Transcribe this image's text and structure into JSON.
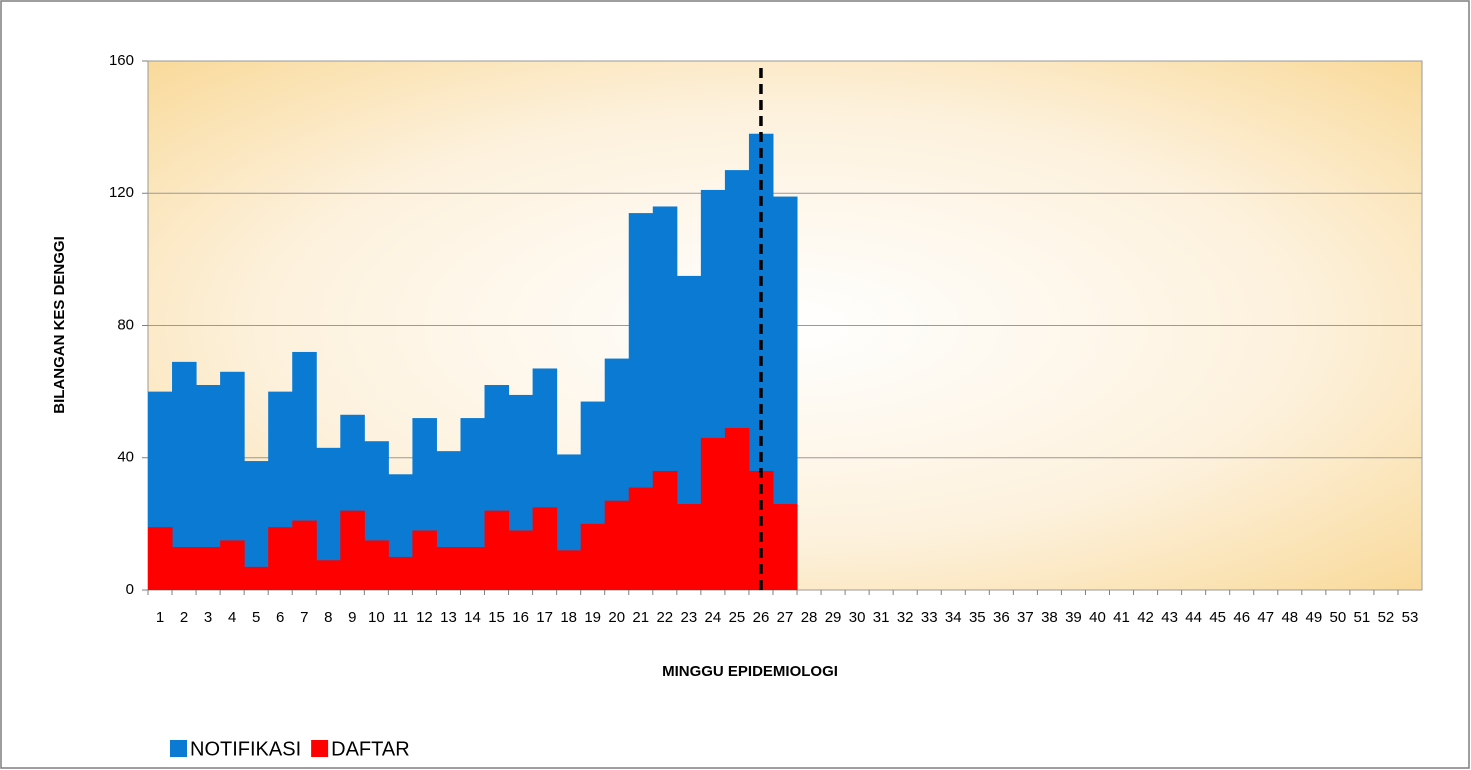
{
  "chart_data": {
    "type": "bar",
    "barmode": "overlay",
    "x_title": "MINGGU EPIDEMIOLOGI",
    "y_title": "BILANGAN KES DENGGI",
    "categories": [
      "1",
      "2",
      "3",
      "4",
      "5",
      "6",
      "7",
      "8",
      "9",
      "10",
      "11",
      "12",
      "13",
      "14",
      "15",
      "16",
      "17",
      "18",
      "19",
      "20",
      "21",
      "22",
      "23",
      "24",
      "25",
      "26",
      "27",
      "28",
      "29",
      "30",
      "31",
      "32",
      "33",
      "34",
      "35",
      "36",
      "37",
      "38",
      "39",
      "40",
      "41",
      "42",
      "43",
      "44",
      "45",
      "46",
      "47",
      "48",
      "49",
      "50",
      "51",
      "52",
      "53"
    ],
    "series": [
      {
        "name": "NOTIFIKASI",
        "color": "#0a7ad2",
        "values": [
          60,
          69,
          62,
          66,
          39,
          60,
          72,
          43,
          53,
          45,
          35,
          52,
          42,
          52,
          62,
          59,
          67,
          41,
          57,
          70,
          114,
          116,
          95,
          121,
          127,
          138,
          119,
          null,
          null,
          null,
          null,
          null,
          null,
          null,
          null,
          null,
          null,
          null,
          null,
          null,
          null,
          null,
          null,
          null,
          null,
          null,
          null,
          null,
          null,
          null,
          null,
          null,
          null
        ]
      },
      {
        "name": "DAFTAR",
        "color": "#ff0000",
        "values": [
          19,
          13,
          13,
          15,
          7,
          19,
          21,
          9,
          24,
          15,
          10,
          18,
          13,
          13,
          24,
          18,
          25,
          12,
          20,
          27,
          31,
          36,
          26,
          46,
          49,
          36,
          26,
          null,
          null,
          null,
          null,
          null,
          null,
          null,
          null,
          null,
          null,
          null,
          null,
          null,
          null,
          null,
          null,
          null,
          null,
          null,
          null,
          null,
          null,
          null,
          null,
          null,
          null
        ]
      }
    ],
    "ylim": [
      0,
      160
    ],
    "yticks": [
      0,
      40,
      80,
      120,
      160
    ],
    "grid": true,
    "vline_category": 26,
    "legend": "bottom-left"
  }
}
